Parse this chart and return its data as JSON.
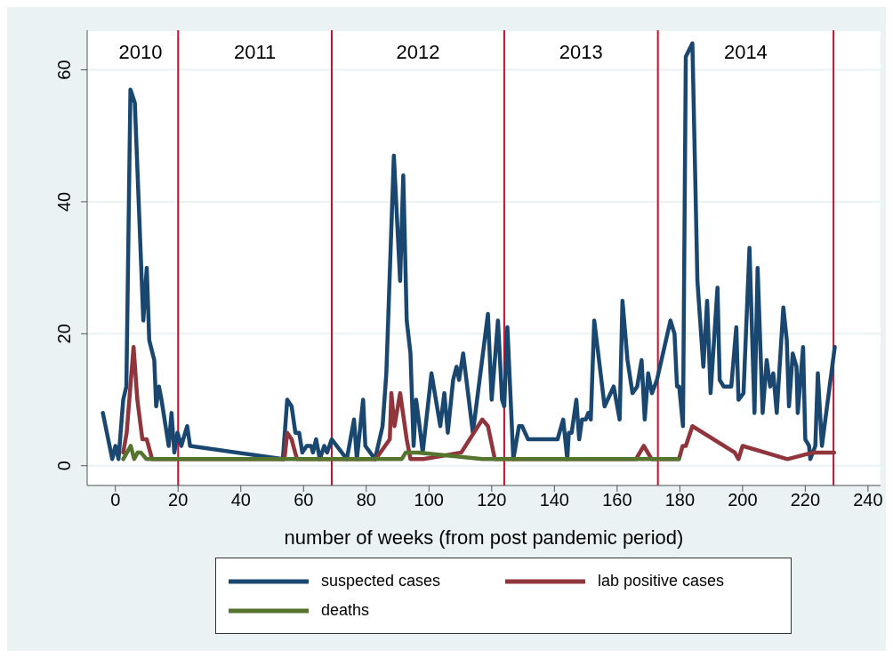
{
  "chart_data": {
    "type": "line",
    "xlabel": "number of weeks (from post pandemic period)",
    "xlim": [
      -9,
      244
    ],
    "xticks": [
      0,
      20,
      40,
      60,
      80,
      100,
      120,
      140,
      160,
      180,
      200,
      220,
      240
    ],
    "ylim": [
      -3,
      66
    ],
    "yticks": [
      0,
      20,
      40,
      60
    ],
    "grid": "y",
    "legend": "bottom",
    "marker": "none",
    "line_style": "solid",
    "ref_lines": [
      {
        "axis": "x",
        "value": 20,
        "color": "#c8102e"
      },
      {
        "axis": "x",
        "value": 69,
        "color": "#c8102e"
      },
      {
        "axis": "x",
        "value": 124,
        "color": "#c8102e"
      },
      {
        "axis": "x",
        "value": 173,
        "color": "#c8102e"
      },
      {
        "axis": "x",
        "value": 229,
        "color": "#c8102e"
      }
    ],
    "annotations": [
      "2010",
      "2011",
      "2012",
      "2013",
      "2014"
    ],
    "series": [
      {
        "name": "suspected cases",
        "color": "#1a476f",
        "x": [
          -4,
          -1,
          0,
          1,
          2.5,
          3.5,
          4.8,
          6.2,
          8.9,
          10,
          10.8,
          12.4,
          13,
          13.9,
          14.7,
          17,
          17.9,
          18.8,
          19.8,
          21,
          22.9,
          23.8,
          53.4,
          54.8,
          56.2,
          57.4,
          58.6,
          59.6,
          61,
          62.4,
          63,
          64,
          65.2,
          66.6,
          67.5,
          69,
          73.8,
          76.1,
          77,
          79,
          79.7,
          82.8,
          85.2,
          86.4,
          88.8,
          90.8,
          91.8,
          92.9,
          94.1,
          95.1,
          95.9,
          97,
          98,
          100.8,
          103.6,
          104.9,
          106,
          107.7,
          108.8,
          109.6,
          110.9,
          114,
          118.8,
          120,
          122,
          123.3,
          124,
          125,
          126.9,
          128.7,
          129.7,
          131.6,
          141,
          142.8,
          144.1,
          144.6,
          145.5,
          147,
          147.9,
          148.8,
          150,
          150.8,
          151.6,
          152.7,
          156,
          158.9,
          160.8,
          161.7,
          163.3,
          164.9,
          166.4,
          167.8,
          168.8,
          169.9,
          171.1,
          172.7,
          177,
          178.3,
          179.1,
          179.8,
          181,
          181.9,
          184,
          185.6,
          187.5,
          188.7,
          189.8,
          192,
          192.7,
          194,
          196.4,
          198,
          198.7,
          200.3,
          202.2,
          203.8,
          204.8,
          206.4,
          207.7,
          208.8,
          209.8,
          210.9,
          213,
          214.1,
          214.8,
          216,
          217.2,
          217.6,
          219.3,
          220,
          221.2,
          221.6,
          223.2,
          224,
          225.3,
          229.4
        ],
        "values": [
          8,
          1,
          3,
          1,
          10,
          12,
          57,
          55,
          22,
          30,
          19,
          16,
          9,
          12,
          10,
          3,
          8,
          2,
          5,
          3,
          6,
          3,
          1,
          10,
          9,
          5,
          5,
          2,
          3,
          3,
          2,
          4,
          1,
          3,
          2,
          4,
          1,
          7,
          1,
          10,
          3,
          1,
          6,
          14,
          47,
          28,
          44,
          22,
          17,
          3,
          10,
          6,
          2,
          14,
          6,
          11,
          5,
          13,
          15,
          13,
          17,
          5,
          23,
          10,
          22,
          10,
          9,
          21,
          1,
          6,
          6,
          4,
          4,
          7,
          1,
          5,
          5,
          10,
          4,
          7,
          7,
          8,
          7,
          22,
          9,
          12,
          7,
          25,
          16,
          11,
          12,
          16,
          7,
          14,
          11,
          13,
          22,
          20,
          12,
          12,
          6,
          62,
          64,
          28,
          15,
          25,
          11,
          27,
          13,
          12,
          12,
          21,
          10,
          11,
          33,
          8,
          30,
          8,
          16,
          12,
          14,
          8,
          24,
          19,
          9,
          17,
          15,
          8,
          18,
          4,
          3,
          1,
          3,
          14,
          3,
          18
        ]
      },
      {
        "name": "lab positive cases",
        "color": "#90353b",
        "x": [
          2.5,
          3.6,
          5.8,
          7,
          8.6,
          10,
          11.7,
          53.9,
          54.8,
          56.2,
          57.9,
          83,
          87.5,
          88,
          89,
          90.8,
          92.9,
          94.1,
          98.3,
          110.3,
          117,
          118.8,
          121,
          166,
          168.5,
          171,
          179.7,
          180.9,
          181.9,
          184,
          197.5,
          198.7,
          200,
          214.3,
          222.5,
          229.2
        ],
        "values": [
          2,
          5,
          18,
          10,
          4,
          4,
          1,
          1,
          5,
          4,
          1,
          1,
          4,
          11,
          6,
          11,
          4,
          1,
          1,
          2,
          7,
          6,
          1,
          1,
          3,
          1,
          1,
          3,
          3,
          6,
          2,
          1,
          3,
          1,
          2,
          2
        ]
      },
      {
        "name": "deaths",
        "color": "#55752f",
        "x": [
          2.5,
          4.9,
          6,
          7.1,
          8.1,
          9.9,
          91.3,
          92.6,
          96.5,
          117,
          179.7
        ],
        "values": [
          1,
          3,
          1,
          2,
          2,
          1,
          1,
          2,
          2,
          1,
          1
        ]
      }
    ]
  }
}
